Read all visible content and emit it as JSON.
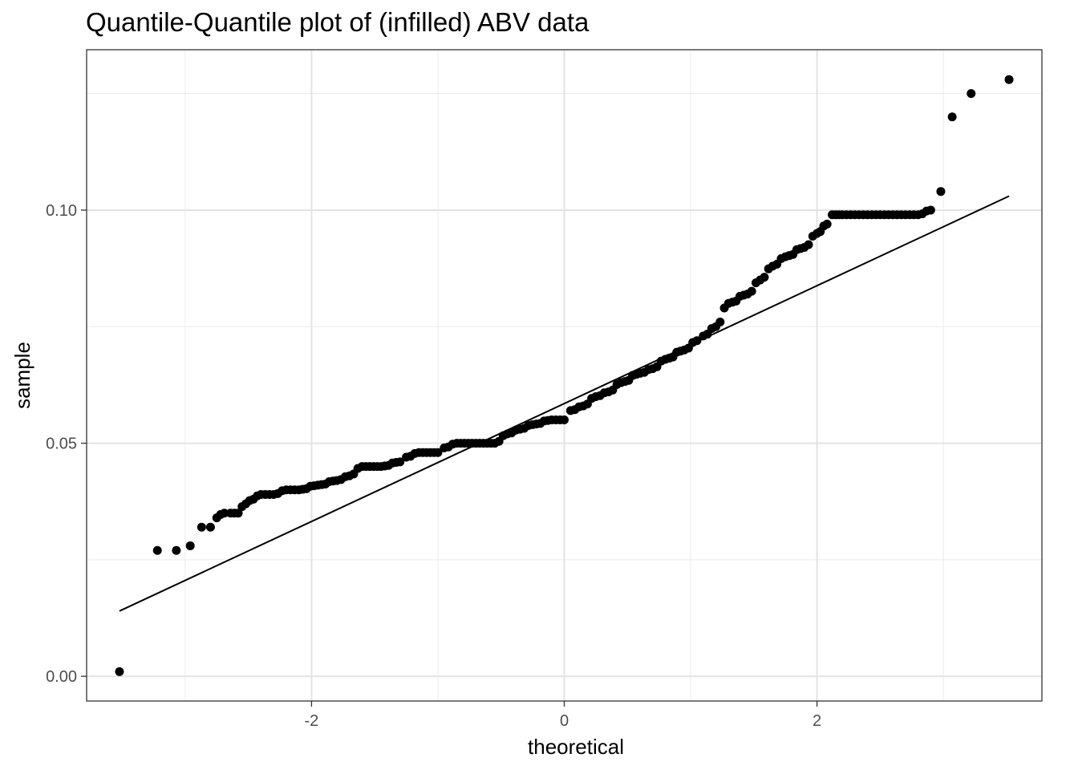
{
  "chart_data": {
    "type": "scatter",
    "title": "Quantile-Quantile plot of (infilled) ABV data",
    "xlabel": "theoretical",
    "ylabel": "sample",
    "xlim": [
      -3.78,
      3.78
    ],
    "ylim": [
      -0.0053,
      0.1344
    ],
    "x_ticks": [
      -2,
      0,
      2
    ],
    "x_tick_labels": [
      "-2",
      "0",
      "2"
    ],
    "y_ticks": [
      0.0,
      0.05,
      0.1
    ],
    "y_tick_labels": [
      "0.00",
      "0.05",
      "0.10"
    ],
    "grid": true,
    "legend": "none",
    "reference_line": {
      "x": [
        -3.52,
        3.52
      ],
      "y": [
        0.014,
        0.103
      ]
    },
    "points": {
      "x": [
        -3.52,
        -3.22,
        -3.07,
        -2.96,
        -2.87,
        -2.8,
        -2.75,
        -2.69,
        -2.64,
        -2.58,
        -2.52,
        -2.46,
        -2.4,
        -2.3,
        -2.2,
        -2.1,
        -1.95,
        -1.8,
        -1.7,
        -1.6,
        -1.45,
        -1.3,
        -1.25,
        -1.15,
        -1.0,
        -0.95,
        -0.85,
        -0.7,
        -0.55,
        -0.45,
        -0.35,
        -0.25,
        -0.1,
        0.0,
        0.05,
        0.15,
        0.25,
        0.35,
        0.45,
        0.6,
        0.7,
        0.8,
        0.95,
        1.05,
        1.1,
        1.2,
        1.3,
        1.45,
        1.55,
        1.65,
        1.75,
        1.9,
        2.0,
        2.08,
        2.12,
        2.2,
        2.3,
        2.4,
        2.5,
        2.6,
        2.7,
        2.8,
        2.9,
        2.98,
        3.07,
        3.22,
        3.52
      ],
      "y": [
        0.001,
        0.027,
        0.027,
        0.028,
        0.032,
        0.032,
        0.034,
        0.035,
        0.035,
        0.035,
        0.037,
        0.038,
        0.039,
        0.039,
        0.04,
        0.04,
        0.041,
        0.042,
        0.043,
        0.045,
        0.045,
        0.046,
        0.047,
        0.048,
        0.048,
        0.049,
        0.05,
        0.05,
        0.05,
        0.052,
        0.053,
        0.054,
        0.055,
        0.055,
        0.057,
        0.058,
        0.06,
        0.061,
        0.063,
        0.065,
        0.066,
        0.068,
        0.07,
        0.072,
        0.073,
        0.075,
        0.08,
        0.082,
        0.085,
        0.088,
        0.09,
        0.092,
        0.095,
        0.097,
        0.099,
        0.099,
        0.099,
        0.099,
        0.099,
        0.099,
        0.099,
        0.099,
        0.1,
        0.104,
        0.12,
        0.125,
        0.128
      ]
    }
  }
}
